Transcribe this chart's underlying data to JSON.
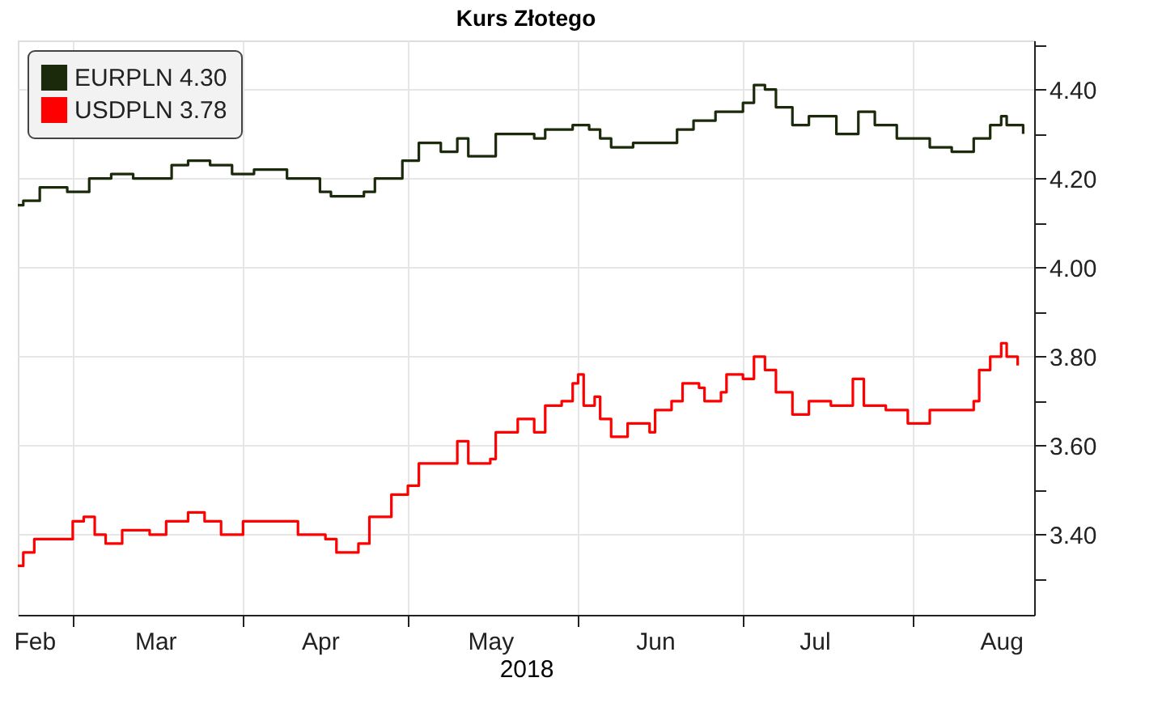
{
  "chart_data": {
    "type": "step",
    "title": "Kurs Złotego",
    "xlabel": "2018",
    "xlim": [
      "2018-02-19",
      "2018-08-23"
    ],
    "xticks": [
      {
        "value": "2018-02-22",
        "label": "Feb"
      },
      {
        "value": "2018-03-01",
        "label": null
      },
      {
        "value": "2018-03-16",
        "label": "Mar"
      },
      {
        "value": "2018-04-01",
        "label": null
      },
      {
        "value": "2018-04-15",
        "label": "Apr"
      },
      {
        "value": "2018-05-01",
        "label": null
      },
      {
        "value": "2018-05-16",
        "label": "May"
      },
      {
        "value": "2018-06-01",
        "label": null
      },
      {
        "value": "2018-06-15",
        "label": "Jun"
      },
      {
        "value": "2018-07-01",
        "label": null
      },
      {
        "value": "2018-07-14",
        "label": "Jul"
      },
      {
        "value": "2018-08-01",
        "label": null
      },
      {
        "value": "2018-08-17",
        "label": "Aug"
      }
    ],
    "ylim": [
      3.22,
      4.51
    ],
    "yticks": [
      {
        "value": 3.3,
        "label": null
      },
      {
        "value": 3.4,
        "label": "3.40"
      },
      {
        "value": 3.5,
        "label": null
      },
      {
        "value": 3.6,
        "label": "3.60"
      },
      {
        "value": 3.7,
        "label": null
      },
      {
        "value": 3.8,
        "label": "3.80"
      },
      {
        "value": 3.9,
        "label": null
      },
      {
        "value": 4.0,
        "label": "4.00"
      },
      {
        "value": 4.1,
        "label": null
      },
      {
        "value": 4.2,
        "label": "4.20"
      },
      {
        "value": 4.3,
        "label": null
      },
      {
        "value": 4.4,
        "label": "4.40"
      },
      {
        "value": 4.5,
        "label": null
      }
    ],
    "grid": true,
    "legend": "top left",
    "line_style": "solid",
    "marker": "none",
    "series": [
      {
        "name": "EURPLN 4.30",
        "color": "#1a2a0a",
        "x": [
          "2018-02-19",
          "2018-02-20",
          "2018-02-23",
          "2018-02-28",
          "2018-03-04",
          "2018-03-08",
          "2018-03-12",
          "2018-03-19",
          "2018-03-22",
          "2018-03-26",
          "2018-03-30",
          "2018-04-03",
          "2018-04-09",
          "2018-04-15",
          "2018-04-17",
          "2018-04-23",
          "2018-04-25",
          "2018-04-30",
          "2018-05-03",
          "2018-05-07",
          "2018-05-10",
          "2018-05-12",
          "2018-05-17",
          "2018-05-20",
          "2018-05-24",
          "2018-05-26",
          "2018-05-31",
          "2018-06-03",
          "2018-06-05",
          "2018-06-07",
          "2018-06-11",
          "2018-06-16",
          "2018-06-19",
          "2018-06-22",
          "2018-06-26",
          "2018-07-01",
          "2018-07-03",
          "2018-07-05",
          "2018-07-07",
          "2018-07-10",
          "2018-07-13",
          "2018-07-18",
          "2018-07-22",
          "2018-07-25",
          "2018-07-29",
          "2018-08-04",
          "2018-08-08",
          "2018-08-12",
          "2018-08-15",
          "2018-08-17",
          "2018-08-18",
          "2018-08-21"
        ],
        "values": [
          4.14,
          4.15,
          4.18,
          4.17,
          4.2,
          4.21,
          4.2,
          4.23,
          4.24,
          4.23,
          4.21,
          4.22,
          4.2,
          4.17,
          4.16,
          4.17,
          4.2,
          4.24,
          4.28,
          4.26,
          4.29,
          4.25,
          4.3,
          4.3,
          4.29,
          4.31,
          4.32,
          4.31,
          4.29,
          4.27,
          4.28,
          4.28,
          4.31,
          4.33,
          4.35,
          4.37,
          4.41,
          4.4,
          4.36,
          4.32,
          4.34,
          4.3,
          4.35,
          4.32,
          4.29,
          4.27,
          4.26,
          4.29,
          4.32,
          4.34,
          4.32,
          4.3
        ]
      },
      {
        "name": "USDPLN 3.78",
        "color": "#ff0000",
        "x": [
          "2018-02-19",
          "2018-02-20",
          "2018-02-22",
          "2018-02-26",
          "2018-03-01",
          "2018-03-03",
          "2018-03-05",
          "2018-03-07",
          "2018-03-10",
          "2018-03-15",
          "2018-03-18",
          "2018-03-22",
          "2018-03-25",
          "2018-03-28",
          "2018-04-01",
          "2018-04-07",
          "2018-04-11",
          "2018-04-16",
          "2018-04-18",
          "2018-04-22",
          "2018-04-24",
          "2018-04-28",
          "2018-05-01",
          "2018-05-03",
          "2018-05-08",
          "2018-05-10",
          "2018-05-12",
          "2018-05-16",
          "2018-05-17",
          "2018-05-21",
          "2018-05-24",
          "2018-05-26",
          "2018-05-29",
          "2018-05-31",
          "2018-06-01",
          "2018-06-02",
          "2018-06-04",
          "2018-06-05",
          "2018-06-07",
          "2018-06-10",
          "2018-06-14",
          "2018-06-15",
          "2018-06-18",
          "2018-06-20",
          "2018-06-23",
          "2018-06-24",
          "2018-06-27",
          "2018-06-28",
          "2018-07-01",
          "2018-07-03",
          "2018-07-05",
          "2018-07-07",
          "2018-07-10",
          "2018-07-13",
          "2018-07-17",
          "2018-07-21",
          "2018-07-23",
          "2018-07-27",
          "2018-07-31",
          "2018-08-04",
          "2018-08-10",
          "2018-08-12",
          "2018-08-13",
          "2018-08-15",
          "2018-08-17",
          "2018-08-18",
          "2018-08-20"
        ],
        "values": [
          3.33,
          3.36,
          3.39,
          3.39,
          3.43,
          3.44,
          3.4,
          3.38,
          3.41,
          3.4,
          3.43,
          3.45,
          3.43,
          3.4,
          3.43,
          3.43,
          3.4,
          3.39,
          3.36,
          3.38,
          3.44,
          3.49,
          3.51,
          3.56,
          3.56,
          3.61,
          3.56,
          3.57,
          3.63,
          3.66,
          3.63,
          3.69,
          3.7,
          3.74,
          3.76,
          3.69,
          3.71,
          3.66,
          3.62,
          3.65,
          3.63,
          3.68,
          3.7,
          3.74,
          3.73,
          3.7,
          3.72,
          3.76,
          3.75,
          3.8,
          3.77,
          3.72,
          3.67,
          3.7,
          3.69,
          3.75,
          3.69,
          3.68,
          3.65,
          3.68,
          3.68,
          3.7,
          3.77,
          3.8,
          3.83,
          3.8,
          3.78
        ]
      }
    ]
  }
}
